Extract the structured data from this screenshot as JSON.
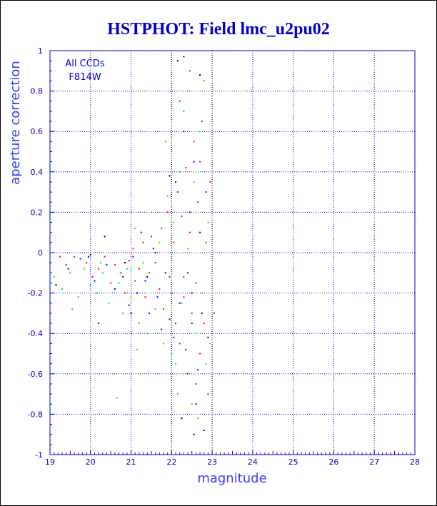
{
  "chart_data": {
    "type": "scatter",
    "title": "HSTPHOT: Field lmc_u2pu02",
    "xlabel": "magnitude",
    "ylabel": "aperture correction",
    "xlim": [
      19,
      28
    ],
    "ylim": [
      -1,
      1
    ],
    "x_ticks": [
      "19",
      "20",
      "21",
      "22",
      "23",
      "24",
      "25",
      "26",
      "27",
      "28"
    ],
    "y_ticks": [
      "-1",
      "-0.8",
      "-0.6",
      "-0.4",
      "-0.2",
      "0",
      "0.2",
      "0.4",
      "0.6",
      "0.8",
      "1"
    ],
    "annotations": [
      "All CCDs",
      "F814W"
    ],
    "grid": true,
    "colors": {
      "axis": "#0000cc",
      "grid": "#0000cc",
      "title": "#0000cc",
      "vline": "#000000"
    },
    "vertical_lines": [
      22,
      23
    ],
    "series": [
      {
        "color": "#ff0000",
        "points": [
          [
            19.25,
            -0.02
          ],
          [
            19.4,
            -0.06
          ],
          [
            19.6,
            -0.02
          ],
          [
            19.9,
            -0.05
          ],
          [
            20.05,
            -0.12
          ],
          [
            20.2,
            -0.08
          ],
          [
            20.35,
            -0.02
          ],
          [
            20.5,
            -0.15
          ],
          [
            20.6,
            -0.06
          ],
          [
            20.75,
            -0.1
          ],
          [
            20.85,
            -0.2
          ],
          [
            20.95,
            -0.04
          ],
          [
            21.05,
            0.02
          ],
          [
            21.1,
            -0.14
          ],
          [
            21.2,
            -0.08
          ],
          [
            21.3,
            0.05
          ],
          [
            21.35,
            -0.22
          ],
          [
            21.45,
            -0.1
          ],
          [
            21.5,
            0.08
          ],
          [
            21.6,
            -0.05
          ],
          [
            21.7,
            -0.18
          ],
          [
            21.75,
            0.12
          ],
          [
            21.8,
            -0.28
          ],
          [
            21.9,
            0.2
          ],
          [
            21.95,
            -0.12
          ],
          [
            22.05,
            0.05
          ],
          [
            22.1,
            -0.35
          ],
          [
            22.15,
            0.3
          ],
          [
            22.2,
            -0.45
          ],
          [
            22.25,
            0.18
          ],
          [
            22.3,
            -0.22
          ],
          [
            22.35,
            0.42
          ],
          [
            22.4,
            -0.6
          ],
          [
            22.45,
            0.1
          ],
          [
            22.5,
            -0.3
          ],
          [
            22.55,
            0.55
          ],
          [
            22.6,
            -0.15
          ],
          [
            22.65,
            0.25
          ],
          [
            22.7,
            -0.5
          ],
          [
            22.75,
            0.65
          ],
          [
            22.8,
            -0.35
          ],
          [
            22.85,
            0.05
          ],
          [
            22.9,
            -0.7
          ],
          [
            22.95,
            0.35
          ],
          [
            23.05,
            -0.3
          ],
          [
            22.2,
            0.75
          ],
          [
            22.45,
            0.9
          ],
          [
            22.6,
            -0.65
          ],
          [
            22.7,
            0.45
          ],
          [
            22.3,
            -0.12
          ]
        ]
      },
      {
        "color": "#00ee00",
        "points": [
          [
            19.1,
            -0.12
          ],
          [
            19.3,
            -0.18
          ],
          [
            19.5,
            -0.1
          ],
          [
            19.7,
            -0.22
          ],
          [
            19.85,
            -0.08
          ],
          [
            20.0,
            -0.16
          ],
          [
            20.15,
            -0.2
          ],
          [
            20.3,
            -0.1
          ],
          [
            20.45,
            -0.25
          ],
          [
            20.55,
            -0.6
          ],
          [
            20.65,
            -0.72
          ],
          [
            20.7,
            -0.15
          ],
          [
            20.8,
            -0.3
          ],
          [
            20.9,
            -0.08
          ],
          [
            21.0,
            -0.22
          ],
          [
            21.1,
            0.12
          ],
          [
            21.2,
            -0.35
          ],
          [
            21.3,
            -0.05
          ],
          [
            21.4,
            -0.4
          ],
          [
            21.5,
            0.2
          ],
          [
            21.6,
            -0.28
          ],
          [
            21.7,
            0.05
          ],
          [
            21.8,
            -0.45
          ],
          [
            21.9,
            0.28
          ],
          [
            22.0,
            -0.5
          ],
          [
            22.05,
            0.15
          ],
          [
            22.1,
            -0.55
          ],
          [
            22.2,
            0.4
          ],
          [
            22.25,
            -0.25
          ],
          [
            22.3,
            0.7
          ],
          [
            22.35,
            -0.6
          ],
          [
            22.4,
            0.02
          ],
          [
            22.5,
            -0.75
          ],
          [
            22.55,
            0.35
          ],
          [
            22.6,
            -0.4
          ],
          [
            22.7,
            0.6
          ],
          [
            22.75,
            -0.2
          ],
          [
            22.8,
            0.85
          ],
          [
            22.85,
            -0.55
          ],
          [
            22.9,
            0.15
          ],
          [
            22.95,
            -0.45
          ],
          [
            22.4,
            0.8
          ],
          [
            22.65,
            -0.82
          ],
          [
            21.85,
            0.55
          ],
          [
            22.15,
            -0.7
          ],
          [
            20.25,
            -0.05
          ],
          [
            19.55,
            -0.28
          ],
          [
            21.15,
            -0.48
          ]
        ]
      },
      {
        "color": "#0000ff",
        "points": [
          [
            19.45,
            -0.08
          ],
          [
            19.75,
            -0.03
          ],
          [
            20.1,
            -0.14
          ],
          [
            20.4,
            -0.06
          ],
          [
            20.6,
            -0.18
          ],
          [
            20.8,
            -0.12
          ],
          [
            20.95,
            -0.26
          ],
          [
            21.05,
            -0.02
          ],
          [
            21.15,
            -0.2
          ],
          [
            21.25,
            0.1
          ],
          [
            21.35,
            -0.14
          ],
          [
            21.45,
            -0.3
          ],
          [
            21.55,
            0.02
          ],
          [
            21.65,
            -0.22
          ],
          [
            21.75,
            -0.38
          ],
          [
            21.85,
            -0.1
          ],
          [
            21.95,
            -0.33
          ],
          [
            22.05,
            -0.42
          ],
          [
            22.1,
            0.35
          ],
          [
            22.2,
            -0.25
          ],
          [
            22.3,
            0.6
          ],
          [
            22.35,
            -0.48
          ],
          [
            22.45,
            0.2
          ],
          [
            22.5,
            -0.35
          ],
          [
            22.55,
            0.45
          ],
          [
            22.65,
            -0.58
          ],
          [
            22.7,
            0.1
          ],
          [
            22.75,
            -0.3
          ],
          [
            22.85,
            0.3
          ],
          [
            22.8,
            -0.88
          ],
          [
            22.3,
            0.97
          ],
          [
            22.6,
            -0.75
          ],
          [
            22.0,
            -0.2
          ],
          [
            21.6,
            0.0
          ],
          [
            20.2,
            -0.35
          ],
          [
            19.95,
            -0.02
          ],
          [
            22.4,
            -0.1
          ]
        ]
      },
      {
        "color": "#000000",
        "points": [
          [
            19.15,
            -0.16
          ],
          [
            20.0,
            -0.01
          ],
          [
            20.35,
            0.08
          ],
          [
            20.85,
            -0.05
          ],
          [
            21.4,
            -0.12
          ],
          [
            21.95,
            0.38
          ],
          [
            22.25,
            -0.82
          ],
          [
            22.55,
            -0.9
          ],
          [
            22.9,
            -0.42
          ],
          [
            22.15,
            0.95
          ],
          [
            22.7,
            0.88
          ],
          [
            21.0,
            -0.3
          ],
          [
            22.5,
            -0.2
          ]
        ]
      }
    ]
  }
}
